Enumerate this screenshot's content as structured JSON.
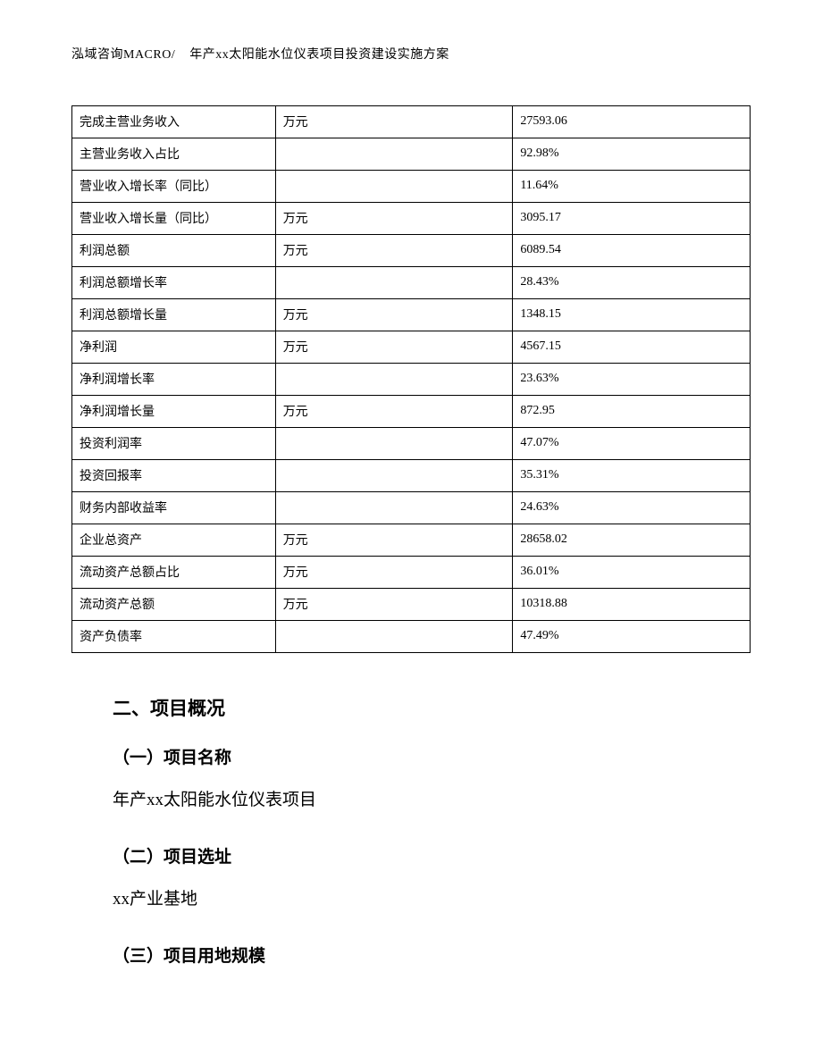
{
  "header": {
    "org": "泓域咨询MACRO/",
    "doc_title": "年产xx太阳能水位仪表项目投资建设实施方案"
  },
  "table": {
    "columns": [
      "label",
      "unit",
      "value"
    ],
    "col_widths_pct": [
      30,
      35,
      35
    ],
    "border_color": "#000000",
    "font_size_pt": 11,
    "rows": [
      {
        "label": "完成主营业务收入",
        "unit": "万元",
        "value": "27593.06"
      },
      {
        "label": "主营业务收入占比",
        "unit": "",
        "value": "92.98%"
      },
      {
        "label": "营业收入增长率（同比）",
        "unit": "",
        "value": "11.64%"
      },
      {
        "label": "营业收入增长量（同比）",
        "unit": "万元",
        "value": "3095.17"
      },
      {
        "label": "利润总额",
        "unit": "万元",
        "value": "6089.54"
      },
      {
        "label": "利润总额增长率",
        "unit": "",
        "value": "28.43%"
      },
      {
        "label": "利润总额增长量",
        "unit": "万元",
        "value": "1348.15"
      },
      {
        "label": "净利润",
        "unit": "万元",
        "value": "4567.15"
      },
      {
        "label": "净利润增长率",
        "unit": "",
        "value": "23.63%"
      },
      {
        "label": "净利润增长量",
        "unit": "万元",
        "value": "872.95"
      },
      {
        "label": "投资利润率",
        "unit": "",
        "value": "47.07%"
      },
      {
        "label": "投资回报率",
        "unit": "",
        "value": "35.31%"
      },
      {
        "label": "财务内部收益率",
        "unit": "",
        "value": "24.63%"
      },
      {
        "label": "企业总资产",
        "unit": "万元",
        "value": "28658.02"
      },
      {
        "label": "流动资产总额占比",
        "unit": "万元",
        "value": "36.01%"
      },
      {
        "label": "流动资产总额",
        "unit": "万元",
        "value": "10318.88"
      },
      {
        "label": "资产负债率",
        "unit": "",
        "value": "47.49%"
      }
    ]
  },
  "sections": {
    "s2_title": "二、项目概况",
    "s2_1_title": "（一）项目名称",
    "s2_1_body": "年产xx太阳能水位仪表项目",
    "s2_2_title": "（二）项目选址",
    "s2_2_body": "xx产业基地",
    "s2_3_title": "（三）项目用地规模"
  },
  "style": {
    "page_bg": "#ffffff",
    "text_color": "#000000",
    "body_font": "SimSun",
    "heading_font": "SimHei",
    "h2_fontsize_pt": 16,
    "h3_fontsize_pt": 14,
    "body_fontsize_pt": 14
  }
}
